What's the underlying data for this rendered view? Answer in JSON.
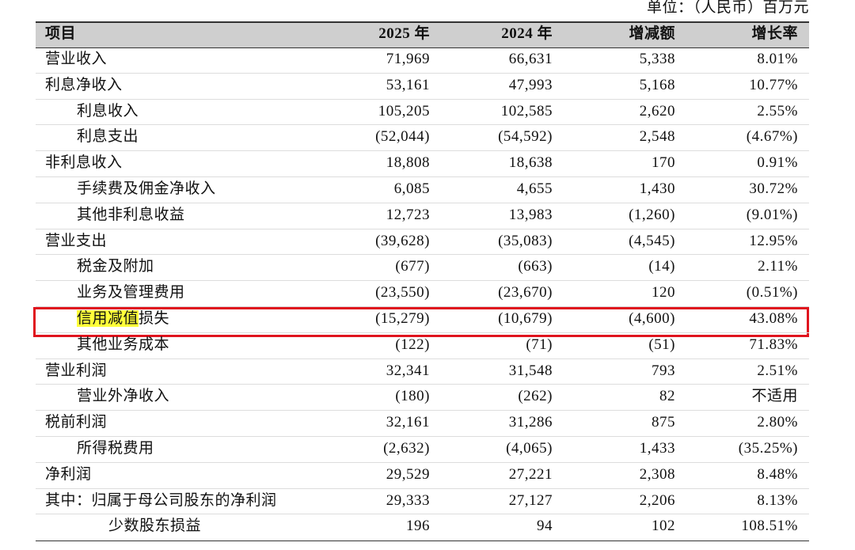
{
  "unit": "单位：（人民币）百万元",
  "table": {
    "header": [
      "项目",
      "2025 年",
      "2024 年",
      "增减额",
      "增长率"
    ],
    "rows": [
      [
        "营业收入",
        "71,969",
        "66,631",
        "5,338",
        "8.01%"
      ],
      [
        "利息净收入",
        "53,161",
        "47,993",
        "5,168",
        "10.77%"
      ],
      [
        "利息收入",
        "105,205",
        "102,585",
        "2,620",
        "2.55%"
      ],
      [
        "利息支出",
        "(52,044)",
        "(54,592)",
        "2,548",
        "(4.67%)"
      ],
      [
        "非利息收入",
        "18,808",
        "18,638",
        "170",
        "0.91%"
      ],
      [
        "手续费及佣金净收入",
        "6,085",
        "4,655",
        "1,430",
        "30.72%"
      ],
      [
        "其他非利息收益",
        "12,723",
        "13,983",
        "(1,260)",
        "(9.01%)"
      ],
      [
        "营业支出",
        "(39,628)",
        "(35,083)",
        "(4,545)",
        "12.95%"
      ],
      [
        "税金及附加",
        "(677)",
        "(663)",
        "(14)",
        "2.11%"
      ],
      [
        "业务及管理费用",
        "(23,550)",
        "(23,670)",
        "120",
        "(0.51%)"
      ],
      [
        [
          "信用减值",
          "损失"
        ],
        "(15,279)",
        "(10,679)",
        "(4,600)",
        "43.08%"
      ],
      [
        "其他业务成本",
        "(122)",
        "(71)",
        "(51)",
        "71.83%"
      ],
      [
        "营业利润",
        "32,341",
        "31,548",
        "793",
        "2.51%"
      ],
      [
        "营业外净收入",
        "(180)",
        "(262)",
        "82",
        "不适用"
      ],
      [
        "税前利润",
        "32,161",
        "31,286",
        "875",
        "2.80%"
      ],
      [
        "所得税费用",
        "(2,632)",
        "(4,065)",
        "1,433",
        "(35.25%)"
      ],
      [
        "净利润",
        "29,529",
        "27,221",
        "2,308",
        "8.48%"
      ],
      [
        "其中：归属于母公司股东的净利润",
        "29,333",
        "27,127",
        "2,206",
        "8.13%"
      ],
      [
        "少数股东损益",
        "196",
        "94",
        "102",
        "108.51%"
      ]
    ]
  }
}
